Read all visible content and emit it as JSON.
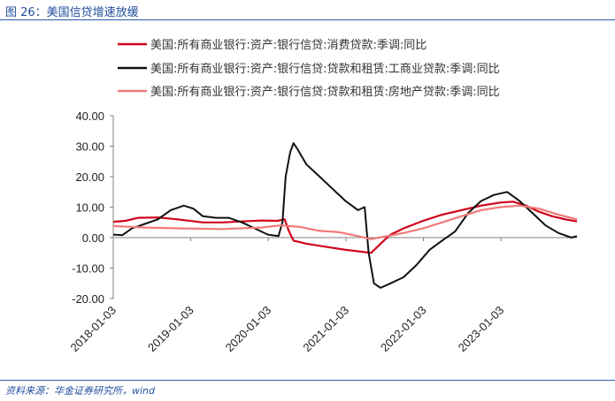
{
  "figure": {
    "title": "图 26：美国信贷增速放缓",
    "source": "资料来源：华金证券研究所，wind"
  },
  "chart_data": {
    "type": "line",
    "title": "",
    "xlabel": "",
    "ylabel": "",
    "ylim": [
      -20,
      40
    ],
    "yticks": [
      "40.00",
      "30.00",
      "20.00",
      "10.00",
      "0.00",
      "-10.00",
      "-20.00"
    ],
    "xticks": [
      "2018-01-03",
      "2019-01-03",
      "2020-01-03",
      "2021-01-03",
      "2022-01-03",
      "2023-01-03"
    ],
    "xlim": [
      "2018-01-03",
      "2023-12-27"
    ],
    "grid": false,
    "legend_position": "top",
    "series": [
      {
        "name": "美国:所有商业银行:资产:银行信贷:消费贷款:季调:同比",
        "color": "#d0021b",
        "points": [
          [
            "2018-01-03",
            5.2
          ],
          [
            "2018-03-01",
            5.5
          ],
          [
            "2018-05-01",
            6.5
          ],
          [
            "2018-08-01",
            6.6
          ],
          [
            "2018-11-01",
            6.0
          ],
          [
            "2019-03-01",
            5.0
          ],
          [
            "2019-06-01",
            5.0
          ],
          [
            "2019-09-01",
            5.3
          ],
          [
            "2019-12-01",
            5.6
          ],
          [
            "2020-02-15",
            5.5
          ],
          [
            "2020-03-20",
            6.0
          ],
          [
            "2020-04-10",
            2.0
          ],
          [
            "2020-05-01",
            -1.0
          ],
          [
            "2020-07-01",
            -2.0
          ],
          [
            "2020-10-01",
            -3.0
          ],
          [
            "2021-01-01",
            -4.0
          ],
          [
            "2021-03-01",
            -4.5
          ],
          [
            "2021-05-01",
            -5.0
          ],
          [
            "2021-06-15",
            -2.0
          ],
          [
            "2021-08-01",
            1.0
          ],
          [
            "2021-10-01",
            3.0
          ],
          [
            "2022-01-01",
            5.5
          ],
          [
            "2022-04-01",
            7.5
          ],
          [
            "2022-07-01",
            9.0
          ],
          [
            "2022-10-01",
            10.5
          ],
          [
            "2023-01-01",
            11.5
          ],
          [
            "2023-03-01",
            11.8
          ],
          [
            "2023-05-01",
            10.5
          ],
          [
            "2023-07-01",
            8.5
          ],
          [
            "2023-09-01",
            7.0
          ],
          [
            "2023-11-01",
            6.0
          ],
          [
            "2023-12-27",
            5.3
          ]
        ]
      },
      {
        "name": "美国:所有商业银行:资产:银行信贷:贷款和租赁:工商业贷款:季调:同比",
        "color": "#111111",
        "points": [
          [
            "2018-01-03",
            1.0
          ],
          [
            "2018-02-15",
            0.8
          ],
          [
            "2018-04-01",
            3.0
          ],
          [
            "2018-06-01",
            4.5
          ],
          [
            "2018-08-01",
            6.0
          ],
          [
            "2018-10-01",
            9.0
          ],
          [
            "2018-12-01",
            10.5
          ],
          [
            "2019-01-15",
            9.5
          ],
          [
            "2019-03-01",
            7.0
          ],
          [
            "2019-05-01",
            6.5
          ],
          [
            "2019-07-01",
            6.5
          ],
          [
            "2019-09-01",
            5.0
          ],
          [
            "2019-11-01",
            3.0
          ],
          [
            "2020-01-01",
            1.0
          ],
          [
            "2020-02-20",
            0.5
          ],
          [
            "2020-03-10",
            5.0
          ],
          [
            "2020-03-25",
            20.0
          ],
          [
            "2020-04-15",
            28.0
          ],
          [
            "2020-05-01",
            31.0
          ],
          [
            "2020-05-20",
            29.0
          ],
          [
            "2020-07-01",
            24.0
          ],
          [
            "2020-09-01",
            20.0
          ],
          [
            "2020-11-01",
            16.0
          ],
          [
            "2021-01-01",
            12.0
          ],
          [
            "2021-03-01",
            9.0
          ],
          [
            "2021-04-01",
            10.0
          ],
          [
            "2021-04-20",
            -5.0
          ],
          [
            "2021-05-15",
            -15.0
          ],
          [
            "2021-06-15",
            -16.5
          ],
          [
            "2021-08-01",
            -15.0
          ],
          [
            "2021-10-01",
            -13.0
          ],
          [
            "2021-12-01",
            -9.0
          ],
          [
            "2022-02-01",
            -4.0
          ],
          [
            "2022-04-01",
            -1.0
          ],
          [
            "2022-06-01",
            2.0
          ],
          [
            "2022-08-01",
            8.0
          ],
          [
            "2022-10-01",
            12.0
          ],
          [
            "2022-12-01",
            14.0
          ],
          [
            "2023-02-01",
            15.0
          ],
          [
            "2023-04-01",
            12.0
          ],
          [
            "2023-06-01",
            8.0
          ],
          [
            "2023-08-01",
            4.0
          ],
          [
            "2023-10-01",
            1.5
          ],
          [
            "2023-12-01",
            0.0
          ],
          [
            "2023-12-27",
            0.5
          ]
        ]
      },
      {
        "name": "美国:所有商业银行:资产:银行信贷:贷款和租赁:房地产贷款:季调:同比",
        "color": "#f07a7a",
        "points": [
          [
            "2018-01-03",
            3.8
          ],
          [
            "2018-06-01",
            3.3
          ],
          [
            "2018-12-01",
            3.0
          ],
          [
            "2019-06-01",
            2.8
          ],
          [
            "2019-12-01",
            3.3
          ],
          [
            "2020-03-01",
            4.0
          ],
          [
            "2020-06-01",
            3.5
          ],
          [
            "2020-09-01",
            2.2
          ],
          [
            "2020-12-01",
            1.8
          ],
          [
            "2021-03-01",
            0.5
          ],
          [
            "2021-05-01",
            -0.5
          ],
          [
            "2021-07-01",
            0.3
          ],
          [
            "2021-10-01",
            1.5
          ],
          [
            "2022-01-01",
            3.0
          ],
          [
            "2022-04-01",
            5.0
          ],
          [
            "2022-07-01",
            7.0
          ],
          [
            "2022-10-01",
            9.0
          ],
          [
            "2023-01-01",
            10.0
          ],
          [
            "2023-04-01",
            10.5
          ],
          [
            "2023-07-01",
            9.5
          ],
          [
            "2023-10-01",
            7.5
          ],
          [
            "2023-12-27",
            6.0
          ]
        ]
      }
    ]
  }
}
